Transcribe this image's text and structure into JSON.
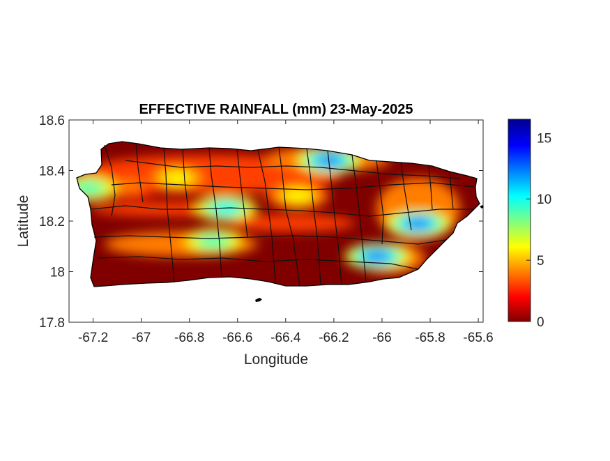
{
  "chart_data": {
    "type": "heatmap",
    "title": "EFFECTIVE RAINFALL (mm) 23-May-2025",
    "xlabel": "Longitude",
    "ylabel": "Latitude",
    "xlim": [
      -67.3,
      -65.58
    ],
    "ylim": [
      17.8,
      18.6
    ],
    "x_ticks": [
      "-67.2",
      "-67",
      "-66.8",
      "-66.6",
      "-66.4",
      "-66.2",
      "-66",
      "-65.8",
      "-65.6"
    ],
    "y_ticks": [
      "18.6",
      "18.4",
      "18.2",
      "18",
      "17.8"
    ],
    "colorbar": {
      "colormap": "jet",
      "range": [
        0,
        16.5
      ],
      "ticks": [
        "15",
        "10",
        "5",
        "0"
      ]
    },
    "grid": false,
    "region": "Puerto Rico",
    "note_colors": {
      "dry": "#800000",
      "wet": "#00008f"
    },
    "rain_cells": [
      {
        "lon": -67.05,
        "lat": 18.34,
        "value": 4
      },
      {
        "lon": -66.85,
        "lat": 18.37,
        "value": 6
      },
      {
        "lon": -66.65,
        "lat": 18.25,
        "value": 10
      },
      {
        "lon": -66.35,
        "lat": 18.3,
        "value": 6
      },
      {
        "lon": -66.22,
        "lat": 18.44,
        "value": 12
      },
      {
        "lon": -66.7,
        "lat": 18.12,
        "value": 9
      },
      {
        "lon": -66.02,
        "lat": 18.06,
        "value": 12
      },
      {
        "lon": -65.85,
        "lat": 18.19,
        "value": 12
      },
      {
        "lon": -67.22,
        "lat": 18.33,
        "value": 9
      }
    ]
  }
}
